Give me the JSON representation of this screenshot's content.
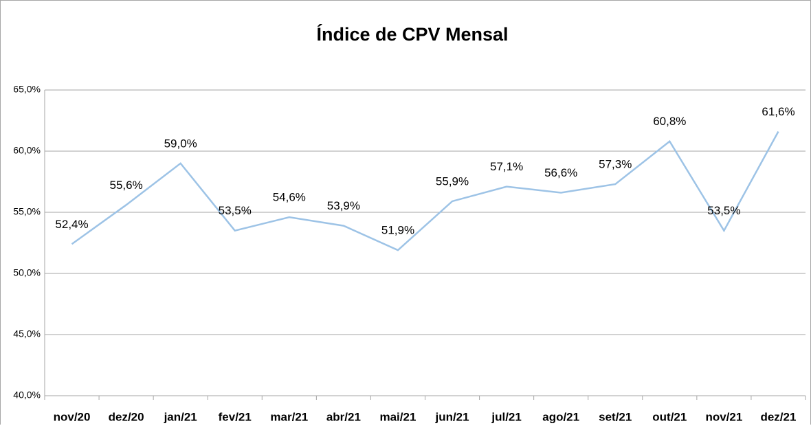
{
  "chart_data": {
    "type": "line",
    "title": "Índice de CPV Mensal",
    "categories": [
      "nov/20",
      "dez/20",
      "jan/21",
      "fev/21",
      "mar/21",
      "abr/21",
      "mai/21",
      "jun/21",
      "jul/21",
      "ago/21",
      "set/21",
      "out/21",
      "nov/21",
      "dez/21"
    ],
    "series": [
      {
        "name": "Índice de CPV",
        "color": "#9dc3e6",
        "values": [
          52.4,
          55.6,
          59.0,
          53.5,
          54.6,
          53.9,
          51.9,
          55.9,
          57.1,
          56.6,
          57.3,
          60.8,
          53.5,
          61.6
        ],
        "value_labels": [
          "52,4%",
          "55,6%",
          "59,0%",
          "53,5%",
          "54,6%",
          "53,9%",
          "51,9%",
          "55,9%",
          "57,1%",
          "56,6%",
          "57,3%",
          "60,8%",
          "53,5%",
          "61,6%"
        ]
      }
    ],
    "ylim": [
      40,
      65
    ],
    "yticks": [
      {
        "value": 40,
        "label": "40,0%"
      },
      {
        "value": 45,
        "label": "45,0%"
      },
      {
        "value": 50,
        "label": "50,0%"
      },
      {
        "value": 55,
        "label": "55,0%"
      },
      {
        "value": 60,
        "label": "60,0%"
      },
      {
        "value": 65,
        "label": "65,0%"
      }
    ],
    "grid": true
  }
}
